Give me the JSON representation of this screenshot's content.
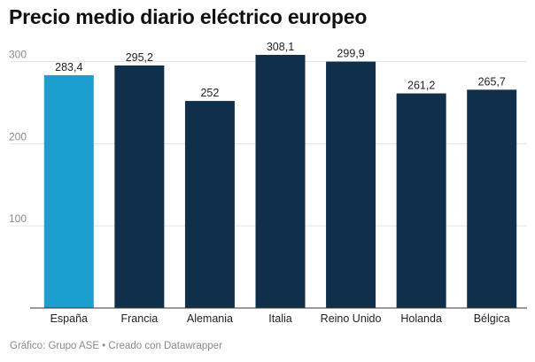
{
  "title": "Precio medio diario eléctrico europeo",
  "footer": "Gráfico: Grupo ASE • Creado con Datawrapper",
  "colors": {
    "highlight": "#1a9fcf",
    "bar": "#0f2f4a",
    "grid": "#e3e3e3",
    "axis": "#333333",
    "tick_text": "#8a8a8a",
    "label_text": "#222222"
  },
  "chart_data": {
    "type": "bar",
    "categories": [
      "España",
      "Francia",
      "Alemania",
      "Italia",
      "Reino Unido",
      "Holanda",
      "Bélgica"
    ],
    "values": [
      283.4,
      295.2,
      252,
      308.1,
      299.9,
      261.2,
      265.7
    ],
    "value_labels": [
      "283,4",
      "295,2",
      "252",
      "308,1",
      "299,9",
      "261,2",
      "265,7"
    ],
    "highlight": "España",
    "title": "Precio medio diario eléctrico europeo",
    "xlabel": "",
    "ylabel": "",
    "ylim": [
      0,
      308.1
    ],
    "yticks": [
      100,
      200,
      300
    ],
    "ytick_labels": [
      "100",
      "200",
      "300"
    ],
    "grid": true
  }
}
